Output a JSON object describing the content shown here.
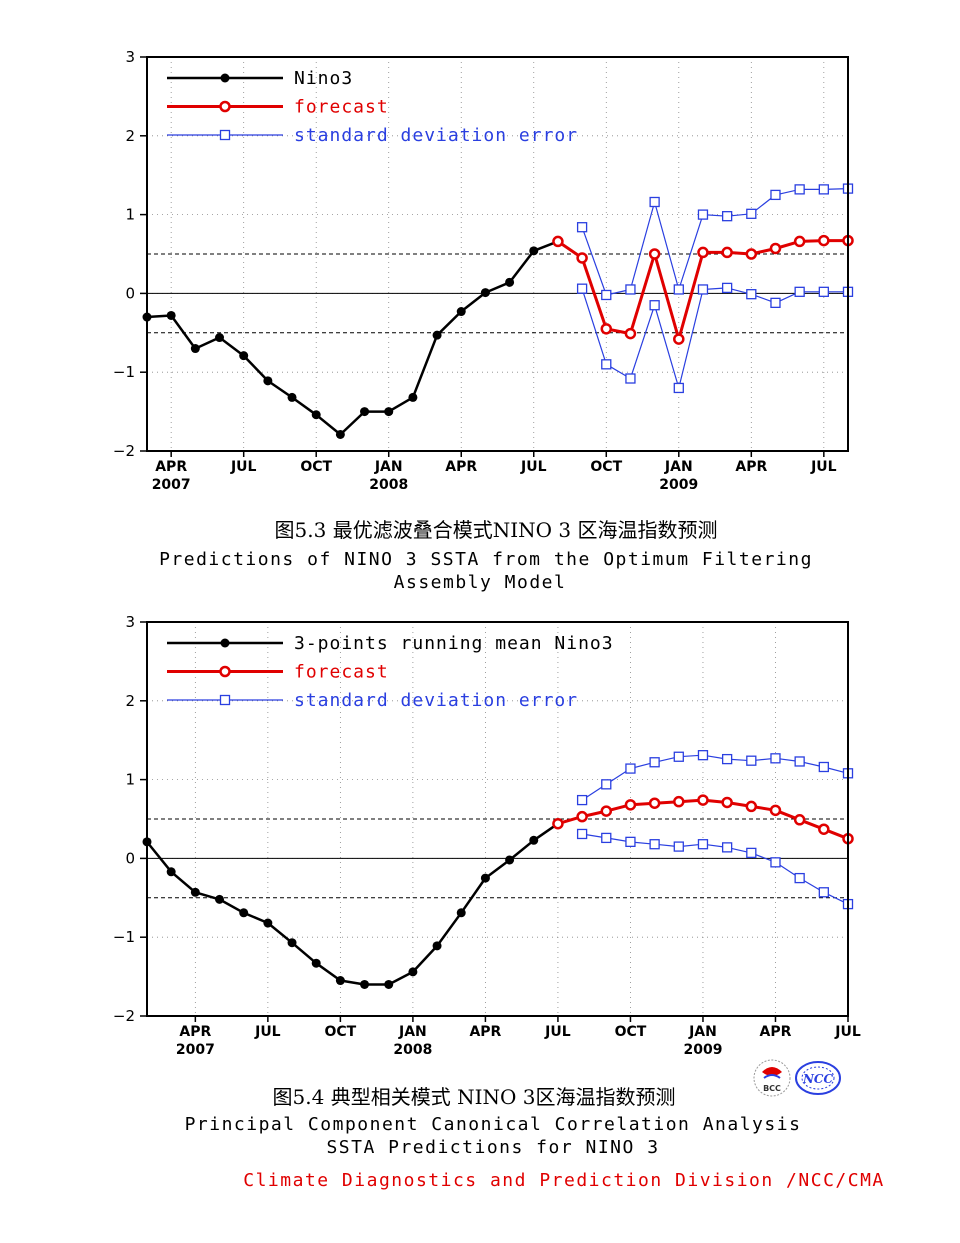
{
  "colors": {
    "black": "#000000",
    "red": "#e00000",
    "blue": "#2a3fe0",
    "grid": "#888888"
  },
  "chart_data": [
    {
      "type": "line",
      "ylim": [
        -2,
        3
      ],
      "yticks": [
        "3",
        "2",
        "1",
        "0",
        "−1",
        "−2"
      ],
      "xticks": [
        {
          "month": "APR",
          "year": "2007",
          "x": 4
        },
        {
          "month": "JUL",
          "year": "",
          "x": 7
        },
        {
          "month": "OCT",
          "year": "",
          "x": 10
        },
        {
          "month": "JAN",
          "year": "2008",
          "x": 13
        },
        {
          "month": "APR",
          "year": "",
          "x": 16
        },
        {
          "month": "JUL",
          "year": "",
          "x": 19
        },
        {
          "month": "OCT",
          "year": "",
          "x": 22
        },
        {
          "month": "JAN",
          "year": "2009",
          "x": 25
        },
        {
          "month": "APR",
          "year": "",
          "x": 28
        },
        {
          "month": "JUL",
          "year": "",
          "x": 31
        }
      ],
      "xlim": [
        3,
        32
      ],
      "reference_lines": [
        0.5,
        0,
        -0.5
      ],
      "series": [
        {
          "name": "Nino3",
          "color": "black",
          "marker": "dot",
          "x": [
            3,
            4,
            5,
            6,
            7,
            8,
            9,
            10,
            11,
            12,
            13,
            14,
            15,
            16,
            17,
            18,
            19,
            20
          ],
          "values": [
            -0.3,
            -0.28,
            -0.7,
            -0.56,
            -0.79,
            -1.11,
            -1.32,
            -1.54,
            -1.79,
            -1.5,
            -1.5,
            -1.32,
            -0.53,
            -0.23,
            0.01,
            0.14,
            0.54,
            0.66
          ]
        },
        {
          "name": "forecast",
          "color": "red",
          "marker": "ring",
          "x": [
            20,
            21,
            22,
            23,
            24,
            25,
            26,
            27,
            28,
            29,
            30,
            31,
            32
          ],
          "values": [
            0.66,
            0.45,
            -0.45,
            -0.51,
            0.5,
            -0.58,
            0.52,
            0.52,
            0.5,
            0.57,
            0.66,
            0.67,
            0.67
          ]
        },
        {
          "name": "standard deviation error",
          "color": "blue",
          "marker": "square",
          "x": [
            21,
            22,
            23,
            24,
            25,
            26,
            27,
            28,
            29,
            30,
            31,
            32
          ],
          "values": [
            0.84,
            -0.02,
            0.05,
            1.16,
            0.05,
            1.0,
            0.98,
            1.01,
            1.25,
            1.32,
            1.32,
            1.33
          ]
        },
        {
          "name": "",
          "color": "blue",
          "marker": "square",
          "legend": false,
          "x": [
            21,
            22,
            23,
            24,
            25,
            26,
            27,
            28,
            29,
            30,
            31,
            32
          ],
          "values": [
            0.06,
            -0.9,
            -1.08,
            -0.15,
            -1.2,
            0.05,
            0.07,
            -0.01,
            -0.12,
            0.02,
            0.02,
            0.02
          ]
        }
      ],
      "caption": {
        "cn": "图5.3 最优滤波叠合模式NINO 3 区海温指数预测",
        "en_line1": "Predictions of NINO 3 SSTA from the Optimum Filtering",
        "en_line2": "Assembly Model"
      }
    },
    {
      "type": "line",
      "ylim": [
        -2,
        3
      ],
      "yticks": [
        "3",
        "2",
        "1",
        "0",
        "−1",
        "−2"
      ],
      "xticks": [
        {
          "month": "APR",
          "year": "2007",
          "x": 4
        },
        {
          "month": "JUL",
          "year": "",
          "x": 7
        },
        {
          "month": "OCT",
          "year": "",
          "x": 10
        },
        {
          "month": "JAN",
          "year": "2008",
          "x": 13
        },
        {
          "month": "APR",
          "year": "",
          "x": 16
        },
        {
          "month": "JUL",
          "year": "",
          "x": 19
        },
        {
          "month": "OCT",
          "year": "",
          "x": 22
        },
        {
          "month": "JAN",
          "year": "2009",
          "x": 25
        },
        {
          "month": "APR",
          "year": "",
          "x": 28
        },
        {
          "month": "JUL",
          "year": "",
          "x": 31
        }
      ],
      "xlim": [
        2,
        31
      ],
      "reference_lines": [
        0.5,
        0,
        -0.5
      ],
      "series": [
        {
          "name": "3-points running mean Nino3",
          "color": "black",
          "marker": "dot",
          "x": [
            2,
            3,
            4,
            5,
            6,
            7,
            8,
            9,
            10,
            11,
            12,
            13,
            14,
            15,
            16,
            17,
            18,
            19
          ],
          "values": [
            0.21,
            -0.17,
            -0.43,
            -0.52,
            -0.69,
            -0.82,
            -1.07,
            -1.33,
            -1.55,
            -1.6,
            -1.6,
            -1.44,
            -1.11,
            -0.69,
            -0.25,
            -0.02,
            0.23,
            0.44
          ]
        },
        {
          "name": "forecast",
          "color": "red",
          "marker": "ring",
          "x": [
            19,
            20,
            21,
            22,
            23,
            24,
            25,
            26,
            27,
            28,
            29,
            30,
            31
          ],
          "values": [
            0.44,
            0.53,
            0.6,
            0.68,
            0.7,
            0.72,
            0.74,
            0.71,
            0.66,
            0.61,
            0.49,
            0.37,
            0.25
          ]
        },
        {
          "name": "standard deviation error",
          "color": "blue",
          "marker": "square",
          "x": [
            20,
            21,
            22,
            23,
            24,
            25,
            26,
            27,
            28,
            29,
            30,
            31
          ],
          "values": [
            0.74,
            0.94,
            1.14,
            1.22,
            1.29,
            1.31,
            1.26,
            1.24,
            1.27,
            1.23,
            1.16,
            1.08
          ]
        },
        {
          "name": "",
          "color": "blue",
          "marker": "square",
          "legend": false,
          "x": [
            20,
            21,
            22,
            23,
            24,
            25,
            26,
            27,
            28,
            29,
            30,
            31
          ],
          "values": [
            0.31,
            0.26,
            0.21,
            0.18,
            0.15,
            0.18,
            0.14,
            0.07,
            -0.05,
            -0.25,
            -0.43,
            -0.58
          ]
        }
      ],
      "caption": {
        "cn": "图5.4 典型相关模式 NINO 3区海温指数预测",
        "en_line1": "Principal Component Canonical Correlation Analysis",
        "en_line2": "SSTA Predictions for NINO 3"
      }
    }
  ],
  "logos": {
    "bcc": "BCC",
    "ncc": "NCC"
  },
  "footer": "Climate Diagnostics and Prediction Division /NCC/CMA"
}
